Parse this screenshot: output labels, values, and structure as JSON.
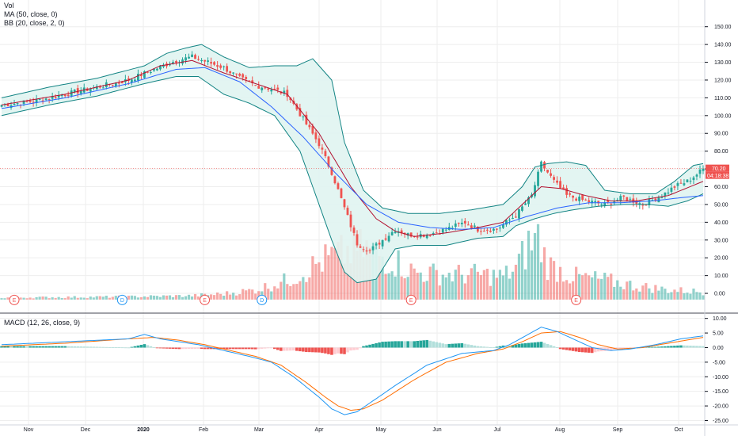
{
  "legend": {
    "vol": "Vol",
    "ma": "MA (50, close, 0)",
    "bb": "BB (20, close, 2, 0)",
    "macd": "MACD (12, 26, close, 9)"
  },
  "price_tags": {
    "last_price": "70.20",
    "countdown": "04:18:38"
  },
  "colors": {
    "up": "#26a69a",
    "down": "#ef5350",
    "ma": "#2962ff",
    "bb_basis": "#b2102f",
    "bb_band": "#138484",
    "bb_fill": "#e0f4f1",
    "macd_line": "#2196f3",
    "signal_line": "#ff6d00",
    "grid": "#eeeeee"
  },
  "chart_data": [
    {
      "type": "candlestick",
      "x_ticks": [
        "Nov",
        "Dec",
        "2020",
        "Feb",
        "Mar",
        "Apr",
        "May",
        "Jun",
        "Jul",
        "Aug",
        "Sep",
        "Oct"
      ],
      "y_ticks": [
        "150.00",
        "140.00",
        "130.00",
        "120.00",
        "110.00",
        "100.00",
        "90.00",
        "80.00",
        "70.00",
        "60.00",
        "50.00",
        "40.00",
        "30.00",
        "20.00",
        "10.00",
        "0.00"
      ],
      "ylim": [
        -8,
        157
      ],
      "last_price": 70.2,
      "close_path": [
        [
          0,
          106
        ],
        [
          10,
          108
        ],
        [
          20,
          112
        ],
        [
          30,
          116
        ],
        [
          40,
          120
        ],
        [
          48,
          126
        ],
        [
          55,
          131
        ],
        [
          60,
          133
        ],
        [
          65,
          130
        ],
        [
          70,
          127
        ],
        [
          75,
          121
        ],
        [
          80,
          117
        ],
        [
          85,
          115
        ],
        [
          90,
          112
        ],
        [
          95,
          98
        ],
        [
          100,
          84
        ],
        [
          104,
          68
        ],
        [
          108,
          48
        ],
        [
          112,
          28
        ],
        [
          116,
          24
        ],
        [
          120,
          30
        ],
        [
          124,
          36
        ],
        [
          128,
          33
        ],
        [
          134,
          33
        ],
        [
          140,
          36
        ],
        [
          146,
          40
        ],
        [
          150,
          36
        ],
        [
          156,
          36
        ],
        [
          162,
          44
        ],
        [
          167,
          55
        ],
        [
          170,
          73
        ],
        [
          174,
          63
        ],
        [
          178,
          55
        ],
        [
          184,
          52
        ],
        [
          190,
          50
        ],
        [
          196,
          54
        ],
        [
          202,
          50
        ],
        [
          208,
          55
        ],
        [
          212,
          60
        ],
        [
          216,
          63
        ],
        [
          219,
          67
        ],
        [
          221,
          70
        ]
      ],
      "ma_path": [
        [
          0,
          104
        ],
        [
          20,
          110
        ],
        [
          40,
          118
        ],
        [
          55,
          126
        ],
        [
          64,
          127
        ],
        [
          75,
          119
        ],
        [
          85,
          105
        ],
        [
          95,
          88
        ],
        [
          105,
          68
        ],
        [
          115,
          50
        ],
        [
          125,
          40
        ],
        [
          135,
          37
        ],
        [
          145,
          36
        ],
        [
          155,
          37
        ],
        [
          165,
          43
        ],
        [
          175,
          48
        ],
        [
          185,
          51
        ],
        [
          195,
          51
        ],
        [
          205,
          52
        ],
        [
          215,
          54
        ],
        [
          221,
          55
        ]
      ],
      "bb_basis_path": [
        [
          0,
          106
        ],
        [
          20,
          112
        ],
        [
          40,
          120
        ],
        [
          50,
          128
        ],
        [
          60,
          131
        ],
        [
          70,
          124
        ],
        [
          80,
          118
        ],
        [
          90,
          112
        ],
        [
          100,
          90
        ],
        [
          110,
          60
        ],
        [
          118,
          42
        ],
        [
          124,
          35
        ],
        [
          130,
          32
        ],
        [
          140,
          34
        ],
        [
          150,
          37
        ],
        [
          158,
          40
        ],
        [
          164,
          50
        ],
        [
          170,
          60
        ],
        [
          176,
          59
        ],
        [
          184,
          55
        ],
        [
          192,
          52
        ],
        [
          200,
          52
        ],
        [
          210,
          55
        ],
        [
          221,
          63
        ]
      ],
      "bb_upper_path": [
        [
          0,
          110
        ],
        [
          15,
          116
        ],
        [
          30,
          121
        ],
        [
          45,
          128
        ],
        [
          52,
          135
        ],
        [
          58,
          138
        ],
        [
          63,
          140
        ],
        [
          70,
          133
        ],
        [
          78,
          127
        ],
        [
          86,
          128
        ],
        [
          93,
          128
        ],
        [
          98,
          132
        ],
        [
          104,
          120
        ],
        [
          108,
          85
        ],
        [
          114,
          58
        ],
        [
          120,
          48
        ],
        [
          128,
          45
        ],
        [
          138,
          45
        ],
        [
          148,
          47
        ],
        [
          158,
          50
        ],
        [
          164,
          60
        ],
        [
          168,
          71
        ],
        [
          172,
          73
        ],
        [
          178,
          74
        ],
        [
          184,
          72
        ],
        [
          190,
          58
        ],
        [
          198,
          56
        ],
        [
          206,
          56
        ],
        [
          212,
          63
        ],
        [
          218,
          72
        ],
        [
          221,
          73
        ]
      ],
      "bb_lower_path": [
        [
          0,
          100
        ],
        [
          15,
          106
        ],
        [
          30,
          111
        ],
        [
          45,
          118
        ],
        [
          55,
          122
        ],
        [
          62,
          122
        ],
        [
          70,
          112
        ],
        [
          78,
          107
        ],
        [
          86,
          100
        ],
        [
          94,
          80
        ],
        [
          100,
          50
        ],
        [
          104,
          30
        ],
        [
          108,
          12
        ],
        [
          112,
          6
        ],
        [
          118,
          8
        ],
        [
          124,
          25
        ],
        [
          130,
          27
        ],
        [
          140,
          27
        ],
        [
          150,
          31
        ],
        [
          158,
          32
        ],
        [
          162,
          38
        ],
        [
          168,
          42
        ],
        [
          174,
          45
        ],
        [
          180,
          47
        ],
        [
          188,
          49
        ],
        [
          196,
          50
        ],
        [
          204,
          50
        ],
        [
          210,
          49
        ],
        [
          216,
          52
        ],
        [
          221,
          56
        ]
      ]
    },
    {
      "type": "bar",
      "name": "Vol",
      "volume_path": [
        [
          0,
          1
        ],
        [
          40,
          1.5
        ],
        [
          60,
          2
        ],
        [
          70,
          3
        ],
        [
          80,
          5
        ],
        [
          90,
          10
        ],
        [
          95,
          14
        ],
        [
          100,
          19
        ],
        [
          104,
          22
        ],
        [
          108,
          24
        ],
        [
          112,
          26
        ],
        [
          116,
          26
        ],
        [
          120,
          22
        ],
        [
          124,
          20
        ],
        [
          130,
          14
        ],
        [
          140,
          13
        ],
        [
          150,
          13
        ],
        [
          158,
          12
        ],
        [
          162,
          16
        ],
        [
          166,
          28
        ],
        [
          169,
          32
        ],
        [
          172,
          18
        ],
        [
          180,
          12
        ],
        [
          190,
          10
        ],
        [
          200,
          7
        ],
        [
          210,
          5
        ],
        [
          221,
          4
        ]
      ],
      "events": [
        {
          "label": "E",
          "color": "#ef5350",
          "x": 4
        },
        {
          "label": "D",
          "color": "#2196f3",
          "x": 38
        },
        {
          "label": "E",
          "color": "#ef5350",
          "x": 64
        },
        {
          "label": "D",
          "color": "#2196f3",
          "x": 82
        },
        {
          "label": "E",
          "color": "#ef5350",
          "x": 129
        },
        {
          "label": "E",
          "color": "#ef5350",
          "x": 181
        }
      ]
    },
    {
      "type": "line",
      "name": "MACD (12, 26, close, 9)",
      "y_ticks": [
        "10.00",
        "5.00",
        "0.00",
        "-5.00",
        "-10.00",
        "-15.00",
        "-20.00",
        "-25.00"
      ],
      "ylim": [
        -26.5,
        11
      ],
      "macd_path": [
        [
          0,
          1
        ],
        [
          20,
          2
        ],
        [
          40,
          3
        ],
        [
          45,
          4.5
        ],
        [
          50,
          3
        ],
        [
          56,
          2
        ],
        [
          62,
          1
        ],
        [
          70,
          -1
        ],
        [
          78,
          -3
        ],
        [
          85,
          -5
        ],
        [
          92,
          -10
        ],
        [
          100,
          -17
        ],
        [
          104,
          -21
        ],
        [
          108,
          -23
        ],
        [
          112,
          -22
        ],
        [
          116,
          -19
        ],
        [
          124,
          -13
        ],
        [
          134,
          -6
        ],
        [
          145,
          -2
        ],
        [
          155,
          -1
        ],
        [
          160,
          1
        ],
        [
          165,
          4
        ],
        [
          170,
          7
        ],
        [
          175,
          5.5
        ],
        [
          180,
          3
        ],
        [
          186,
          0
        ],
        [
          192,
          -1
        ],
        [
          198,
          -0.5
        ],
        [
          206,
          1
        ],
        [
          214,
          3
        ],
        [
          221,
          4
        ]
      ],
      "signal_path": [
        [
          0,
          0.5
        ],
        [
          20,
          1.5
        ],
        [
          40,
          3
        ],
        [
          48,
          3.5
        ],
        [
          56,
          2.5
        ],
        [
          64,
          1
        ],
        [
          72,
          -1
        ],
        [
          80,
          -3
        ],
        [
          88,
          -6
        ],
        [
          96,
          -12
        ],
        [
          102,
          -17
        ],
        [
          106,
          -20
        ],
        [
          110,
          -21.5
        ],
        [
          114,
          -21
        ],
        [
          120,
          -18
        ],
        [
          130,
          -11
        ],
        [
          140,
          -5
        ],
        [
          150,
          -2
        ],
        [
          158,
          -0.5
        ],
        [
          164,
          2
        ],
        [
          170,
          5
        ],
        [
          176,
          5.5
        ],
        [
          182,
          3.5
        ],
        [
          188,
          1
        ],
        [
          194,
          -0.5
        ],
        [
          202,
          0
        ],
        [
          210,
          1.5
        ],
        [
          221,
          3.5
        ]
      ]
    }
  ]
}
